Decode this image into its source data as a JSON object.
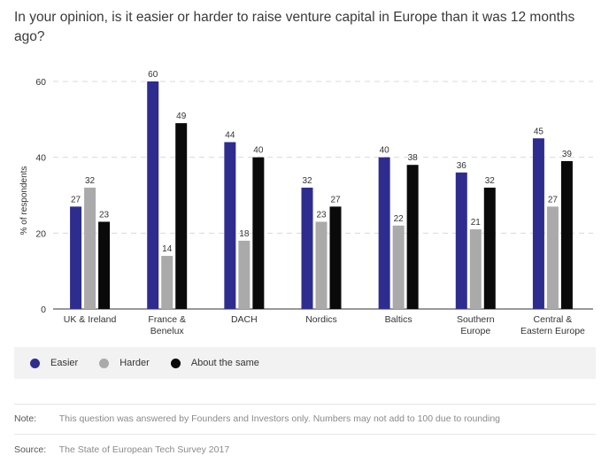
{
  "title": "In your opinion, is it easier or harder to raise venture capital in Europe than it was 12 months ago?",
  "chart_data": {
    "type": "bar",
    "categories": [
      [
        "UK & Ireland"
      ],
      [
        "France &",
        "Benelux"
      ],
      [
        "DACH"
      ],
      [
        "Nordics"
      ],
      [
        "Baltics"
      ],
      [
        "Southern",
        "Europe"
      ],
      [
        "Central &",
        "Eastern Europe"
      ]
    ],
    "series": [
      {
        "name": "Easier",
        "color": "#2e2d8f",
        "values": [
          27,
          60,
          44,
          32,
          40,
          36,
          45
        ]
      },
      {
        "name": "Harder",
        "color": "#aaaaaa",
        "values": [
          32,
          14,
          18,
          23,
          22,
          21,
          27
        ]
      },
      {
        "name": "About the same",
        "color": "#0a0a0a",
        "values": [
          23,
          49,
          40,
          27,
          38,
          32,
          39
        ]
      }
    ],
    "ylabel": "% of respondents",
    "yticks": [
      "0",
      "20",
      "40",
      "60"
    ],
    "ylim": [
      0,
      60
    ],
    "grid": true,
    "legend_position": "bottom"
  },
  "legend": [
    {
      "label": "Easier",
      "color": "#2e2d8f"
    },
    {
      "label": "Harder",
      "color": "#aaaaaa"
    },
    {
      "label": "About the same",
      "color": "#0a0a0a"
    }
  ],
  "note": {
    "label": "Note:",
    "text": "This question was answered by Founders and Investors only. Numbers may not add to 100 due to rounding"
  },
  "source": {
    "label": "Source:",
    "text": "The State of European Tech Survey 2017"
  }
}
